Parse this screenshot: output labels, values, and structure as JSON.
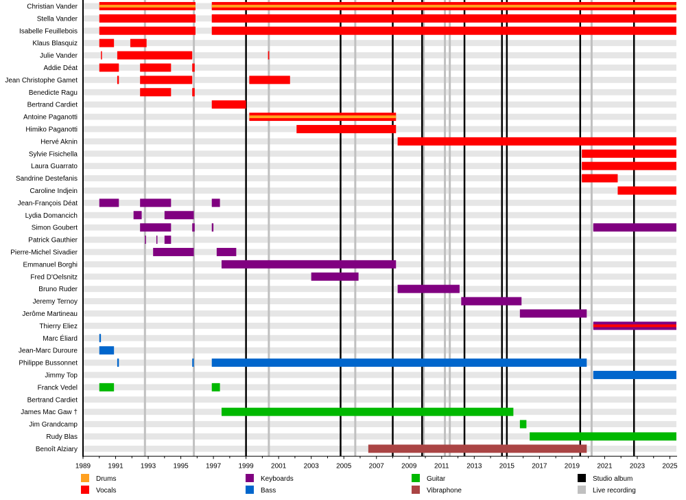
{
  "chart_data": {
    "type": "timeline",
    "title": "",
    "xlabel": "",
    "ylabel": "",
    "x_range": [
      1989,
      2025.4
    ],
    "x_ticks": [
      1989,
      1991,
      1993,
      1995,
      1997,
      1999,
      2001,
      2003,
      2005,
      2007,
      2009,
      2011,
      2013,
      2015,
      2017,
      2019,
      2021,
      2023,
      2025
    ],
    "grid": true,
    "legend_position": "bottom",
    "colors": {
      "drums": "#ffa020",
      "vocals": "#ff0000",
      "keyboards": "#800080",
      "bass": "#0066cc",
      "guitar": "#00b800",
      "vibraphone": "#aa4444",
      "studio": "#000000",
      "live": "#c0c0c0",
      "row_stripe": "#e6e6e6"
    },
    "legend": [
      {
        "label": "Drums",
        "color": "#ffa020"
      },
      {
        "label": "Vocals",
        "color": "#ff0000"
      },
      {
        "label": "Keyboards",
        "color": "#800080"
      },
      {
        "label": "Bass",
        "color": "#0066cc"
      },
      {
        "label": "Guitar",
        "color": "#00b800"
      },
      {
        "label": "Vibraphone",
        "color": "#aa4444"
      },
      {
        "label": "Studio album",
        "color": "#000000"
      },
      {
        "label": "Live recording",
        "color": "#c0c0c0"
      }
    ],
    "studio_albums": [
      1999.0,
      2004.8,
      2008.0,
      2009.8,
      2012.4,
      2014.7,
      2015.0,
      2019.5,
      2022.8
    ],
    "live_recordings": [
      1992.8,
      1995.8,
      2000.4,
      2005.7,
      2009.9,
      2011.2,
      2011.5,
      2020.2
    ],
    "members": [
      {
        "name": "Christian Vander",
        "bars": [
          {
            "start": 1990.0,
            "end": 1995.9,
            "color": "vocals",
            "stripe": "drums"
          },
          {
            "start": 1996.9,
            "end": 2025.4,
            "color": "vocals",
            "stripe": "drums"
          }
        ]
      },
      {
        "name": "Stella Vander",
        "bars": [
          {
            "start": 1990.0,
            "end": 1995.9,
            "color": "vocals"
          },
          {
            "start": 1996.9,
            "end": 2025.4,
            "color": "vocals"
          }
        ]
      },
      {
        "name": "Isabelle Feuillebois",
        "bars": [
          {
            "start": 1990.0,
            "end": 1995.9,
            "color": "vocals"
          },
          {
            "start": 1996.9,
            "end": 2025.4,
            "color": "vocals"
          }
        ]
      },
      {
        "name": "Klaus Blasquiz",
        "bars": [
          {
            "start": 1990.0,
            "end": 1990.9,
            "color": "vocals"
          },
          {
            "start": 1991.9,
            "end": 1992.9,
            "color": "vocals"
          }
        ]
      },
      {
        "name": "Julie Vander",
        "bars": [
          {
            "start": 1990.1,
            "end": 1990.15,
            "color": "vocals"
          },
          {
            "start": 1991.1,
            "end": 1995.7,
            "color": "vocals"
          },
          {
            "start": 2000.35,
            "end": 2000.42,
            "color": "vocals"
          }
        ]
      },
      {
        "name": "Addie Déat",
        "bars": [
          {
            "start": 1990.0,
            "end": 1991.2,
            "color": "vocals"
          },
          {
            "start": 1992.5,
            "end": 1994.4,
            "color": "vocals"
          },
          {
            "start": 1995.7,
            "end": 1995.85,
            "color": "vocals"
          }
        ]
      },
      {
        "name": "Jean Christophe Gamet",
        "bars": [
          {
            "start": 1991.1,
            "end": 1991.2,
            "color": "vocals"
          },
          {
            "start": 1992.5,
            "end": 1995.7,
            "color": "vocals"
          },
          {
            "start": 1999.2,
            "end": 2001.7,
            "color": "vocals"
          }
        ]
      },
      {
        "name": "Benedicte Ragu",
        "bars": [
          {
            "start": 1992.5,
            "end": 1994.4,
            "color": "vocals"
          },
          {
            "start": 1995.7,
            "end": 1995.85,
            "color": "vocals"
          }
        ]
      },
      {
        "name": "Bertrand Cardiet",
        "bars": [
          {
            "start": 1996.9,
            "end": 1999.0,
            "color": "vocals"
          }
        ]
      },
      {
        "name": "Antoine Paganotti",
        "bars": [
          {
            "start": 1999.2,
            "end": 2008.2,
            "color": "vocals",
            "stripe": "drums"
          }
        ]
      },
      {
        "name": "Himiko Paganotti",
        "bars": [
          {
            "start": 2002.1,
            "end": 2008.2,
            "color": "vocals"
          }
        ]
      },
      {
        "name": "Hervé Aknin",
        "bars": [
          {
            "start": 2008.3,
            "end": 2025.4,
            "color": "vocals"
          }
        ]
      },
      {
        "name": "Sylvie Fisichella",
        "bars": [
          {
            "start": 2019.6,
            "end": 2025.4,
            "color": "vocals"
          }
        ]
      },
      {
        "name": "Laura Guarrato",
        "bars": [
          {
            "start": 2019.6,
            "end": 2025.4,
            "color": "vocals"
          }
        ]
      },
      {
        "name": "Sandrine Destefanis",
        "bars": [
          {
            "start": 2019.6,
            "end": 2021.8,
            "color": "vocals"
          }
        ]
      },
      {
        "name": "Caroline Indjein",
        "bars": [
          {
            "start": 2021.8,
            "end": 2025.4,
            "color": "vocals"
          }
        ]
      },
      {
        "name": "Jean-François Déat",
        "bars": [
          {
            "start": 1990.0,
            "end": 1991.2,
            "color": "keyboards"
          },
          {
            "start": 1992.5,
            "end": 1994.4,
            "color": "keyboards"
          },
          {
            "start": 1996.9,
            "end": 1997.4,
            "color": "keyboards"
          }
        ]
      },
      {
        "name": "Lydia Domancich",
        "bars": [
          {
            "start": 1992.1,
            "end": 1992.6,
            "color": "keyboards"
          },
          {
            "start": 1994.0,
            "end": 1995.8,
            "color": "keyboards"
          }
        ]
      },
      {
        "name": "Simon Goubert",
        "bars": [
          {
            "start": 1992.5,
            "end": 1994.4,
            "color": "keyboards"
          },
          {
            "start": 1995.7,
            "end": 1995.85,
            "color": "keyboards"
          },
          {
            "start": 1996.9,
            "end": 1997.0,
            "color": "keyboards"
          },
          {
            "start": 2020.3,
            "end": 2025.4,
            "color": "keyboards"
          }
        ]
      },
      {
        "name": "Patrick Gauthier",
        "bars": [
          {
            "start": 1992.8,
            "end": 1992.85,
            "color": "keyboards"
          },
          {
            "start": 1993.5,
            "end": 1993.55,
            "color": "keyboards"
          },
          {
            "start": 1994.0,
            "end": 1994.4,
            "color": "keyboards"
          }
        ]
      },
      {
        "name": "Pierre-Michel Sivadier",
        "bars": [
          {
            "start": 1993.3,
            "end": 1995.8,
            "color": "keyboards"
          },
          {
            "start": 1997.2,
            "end": 1998.4,
            "color": "keyboards"
          }
        ]
      },
      {
        "name": "Emmanuel Borghi",
        "bars": [
          {
            "start": 1997.5,
            "end": 2008.2,
            "color": "keyboards"
          }
        ]
      },
      {
        "name": "Fred D'Oelsnitz",
        "bars": [
          {
            "start": 2003.0,
            "end": 2005.9,
            "color": "keyboards"
          }
        ]
      },
      {
        "name": "Bruno Ruder",
        "bars": [
          {
            "start": 2008.3,
            "end": 2012.1,
            "color": "keyboards"
          }
        ]
      },
      {
        "name": "Jeremy Ternoy",
        "bars": [
          {
            "start": 2012.2,
            "end": 2015.9,
            "color": "keyboards"
          }
        ]
      },
      {
        "name": "Jerôme Martineau",
        "bars": [
          {
            "start": 2015.8,
            "end": 2019.9,
            "color": "keyboards"
          }
        ]
      },
      {
        "name": "Thierry Eliez",
        "bars": [
          {
            "start": 2020.3,
            "end": 2025.4,
            "color": "keyboards",
            "stripe": "vocals"
          }
        ]
      },
      {
        "name": "Marc Éliard",
        "bars": [
          {
            "start": 1990.0,
            "end": 1990.1,
            "color": "bass"
          }
        ]
      },
      {
        "name": "Jean-Marc Duroure",
        "bars": [
          {
            "start": 1990.0,
            "end": 1990.9,
            "color": "bass"
          }
        ]
      },
      {
        "name": "Philippe Bussonnet",
        "bars": [
          {
            "start": 1991.1,
            "end": 1991.2,
            "color": "bass"
          },
          {
            "start": 1995.7,
            "end": 1995.8,
            "color": "bass"
          },
          {
            "start": 1996.9,
            "end": 2019.9,
            "color": "bass"
          }
        ]
      },
      {
        "name": "Jimmy Top",
        "bars": [
          {
            "start": 2020.3,
            "end": 2025.4,
            "color": "bass"
          }
        ]
      },
      {
        "name": "Franck Vedel",
        "bars": [
          {
            "start": 1990.0,
            "end": 1990.9,
            "color": "guitar"
          },
          {
            "start": 1996.9,
            "end": 1997.4,
            "color": "guitar"
          }
        ]
      },
      {
        "name": "Bertrand Cardiet",
        "bars": []
      },
      {
        "name": "James Mac Gaw †",
        "bars": [
          {
            "start": 1997.5,
            "end": 2015.4,
            "color": "guitar"
          }
        ]
      },
      {
        "name": "Jim Grandcamp",
        "bars": [
          {
            "start": 2015.8,
            "end": 2016.2,
            "color": "guitar"
          }
        ]
      },
      {
        "name": "Rudy Blas",
        "bars": [
          {
            "start": 2016.4,
            "end": 2025.4,
            "color": "guitar"
          }
        ]
      },
      {
        "name": "Benoît Alziary",
        "bars": [
          {
            "start": 2006.5,
            "end": 2019.9,
            "color": "vibraphone"
          }
        ]
      }
    ]
  }
}
